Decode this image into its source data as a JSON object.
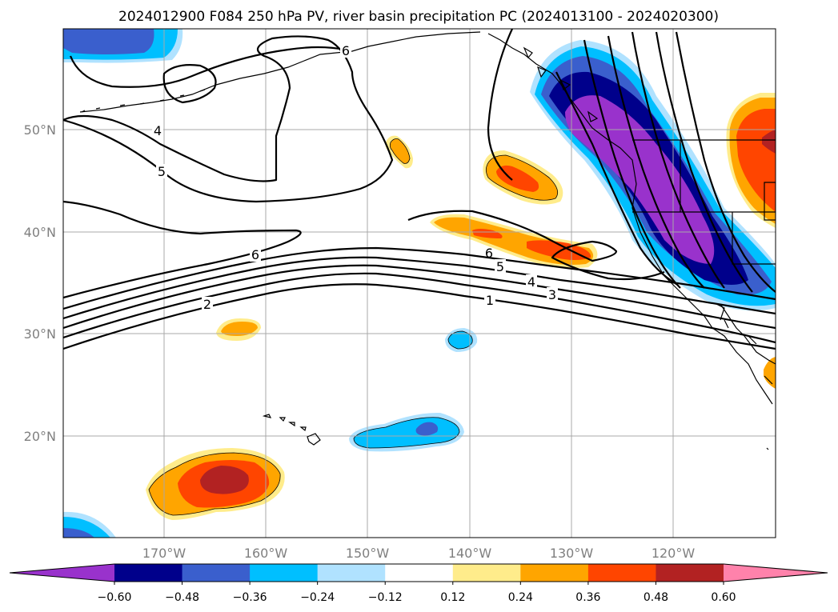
{
  "title": "2024012900 F084 250 hPa PV, river basin precipitation PC (2024013100 - 2024020300)",
  "axes": {
    "lon_labels": [
      "170°W",
      "160°W",
      "150°W",
      "140°W",
      "130°W",
      "120°W"
    ],
    "lat_labels": [
      "20°N",
      "30°N",
      "40°N",
      "50°N"
    ]
  },
  "contour_labels": [
    "6",
    "4",
    "5",
    "6",
    "2",
    "6",
    "5",
    "4",
    "3",
    "1"
  ],
  "colorbar": {
    "ticks": [
      "−0.60",
      "−0.48",
      "−0.36",
      "−0.24",
      "−0.12",
      "0.12",
      "0.24",
      "0.36",
      "0.48",
      "0.60"
    ],
    "colors": [
      "#9932cc",
      "#00008b",
      "#3a5fcd",
      "#00bfff",
      "#b0e2ff",
      "#ffffff",
      "#ffec8b",
      "#ffa500",
      "#ff4500",
      "#b22222",
      "#ff82ab"
    ]
  },
  "palette": {
    "purple": "#9932cc",
    "navy": "#00008b",
    "royal": "#3a5fcd",
    "sky": "#00bfff",
    "light_sky": "#b0e2ff",
    "yellow": "#ffec8b",
    "orange": "#ffa500",
    "red_orange": "#ff4500",
    "firebrick": "#b22222",
    "pink": "#ff82ab"
  }
}
